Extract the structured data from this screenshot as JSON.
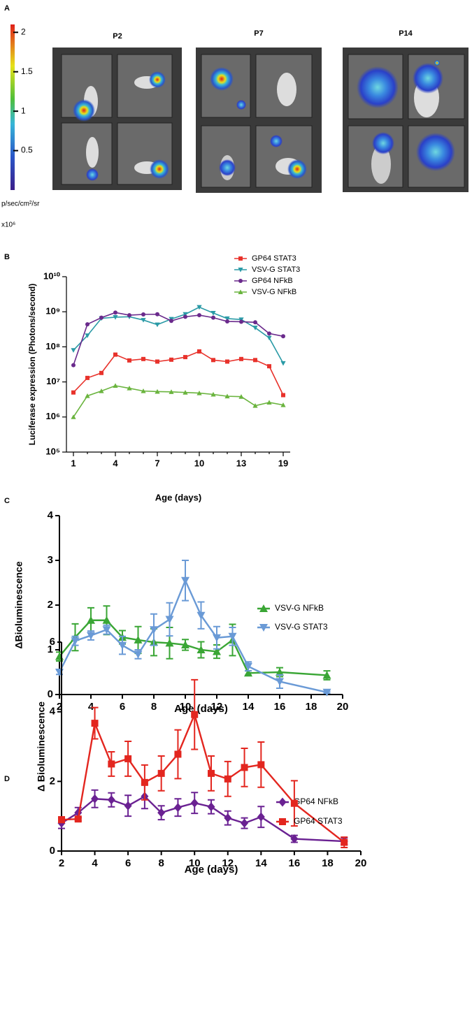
{
  "figure": {
    "panel_labels": [
      "A",
      "B",
      "C",
      "D"
    ],
    "images": {
      "titles": [
        "P2",
        "P7",
        "P14"
      ],
      "colorbar": {
        "label": "p/sec/cm²/sr",
        "multiplier": "x10⁶",
        "lim": [
          0,
          2.1
        ],
        "ticks": [
          0.5,
          1,
          1.5,
          2
        ]
      }
    }
  },
  "chart_data": [
    {
      "type": "line",
      "ylabel": "Luciferase expression (Photons/second)",
      "xlabel": "Age (days)",
      "categories": [
        "1",
        null,
        null,
        "4",
        null,
        null,
        "7",
        null,
        null,
        "10",
        null,
        null,
        "13",
        null,
        null,
        "19"
      ],
      "ylim": [
        100000,
        10000000000
      ],
      "log_y": true,
      "yticks": [
        {
          "value": 100000,
          "label": "10⁵"
        },
        {
          "value": 1000000,
          "label": "10⁶"
        },
        {
          "value": 10000000,
          "label": "10⁷"
        },
        {
          "value": 100000000,
          "label": "10⁸"
        },
        {
          "value": 1000000000,
          "label": "10⁹"
        },
        {
          "value": 10000000000,
          "label": "10¹⁰"
        }
      ],
      "legend": "upper right",
      "series": [
        {
          "name": "GP64 STAT3",
          "color": "#e8322b",
          "marker": "square",
          "values": [
            5000000,
            13000000,
            18000000,
            60000000,
            41000000,
            45000000,
            38000000,
            43000000,
            51000000,
            74000000,
            42000000,
            38000000,
            45000000,
            42000000,
            28000000,
            4200000
          ]
        },
        {
          "name": "VSV-G STAT3",
          "color": "#2a9aa6",
          "marker": "triangle-down",
          "values": [
            80000000,
            210000000,
            650000000,
            700000000,
            720000000,
            580000000,
            430000000,
            620000000,
            850000000,
            1350000000,
            920000000,
            640000000,
            600000000,
            350000000,
            180000000,
            34000000
          ]
        },
        {
          "name": "GP64 NFkB",
          "color": "#6a2a8c",
          "marker": "circle",
          "values": [
            30000000,
            440000000,
            680000000,
            950000000,
            800000000,
            840000000,
            850000000,
            550000000,
            720000000,
            800000000,
            680000000,
            530000000,
            520000000,
            500000000,
            240000000,
            200000000
          ]
        },
        {
          "name": "VSV-G NFkB",
          "color": "#6ab43e",
          "marker": "triangle-up",
          "values": [
            1000000,
            4000000,
            5500000,
            7800000,
            6600000,
            5500000,
            5300000,
            5200000,
            5000000,
            4800000,
            4400000,
            3900000,
            3800000,
            2100000,
            2600000,
            2200000
          ]
        }
      ]
    },
    {
      "type": "line",
      "ylabel": "ΔBioluminescence",
      "xlabel": "Age (days)",
      "xlim": [
        2,
        20
      ],
      "xticks": [
        2,
        4,
        6,
        8,
        10,
        12,
        14,
        16,
        18,
        20
      ],
      "ylim": [
        0,
        4
      ],
      "yticks": [
        0,
        1,
        2,
        3,
        4
      ],
      "legend": "upper right",
      "series": [
        {
          "name": "VSV-G NFkB",
          "color": "#3aa635",
          "marker": "triangle-up",
          "x": [
            2,
            3,
            4,
            5,
            6,
            7,
            8,
            9,
            10,
            11,
            12,
            13,
            14,
            16,
            19
          ],
          "values": [
            0.85,
            1.28,
            1.66,
            1.66,
            1.28,
            1.22,
            1.17,
            1.15,
            1.11,
            1.0,
            0.96,
            1.22,
            0.48,
            0.5,
            0.43
          ],
          "errors": [
            0.1,
            0.3,
            0.28,
            0.32,
            0.15,
            0.3,
            0.3,
            0.35,
            0.12,
            0.18,
            0.15,
            0.35,
            0.05,
            0.1,
            0.1
          ]
        },
        {
          "name": "VSV-G STAT3",
          "color": "#6a9ad6",
          "marker": "triangle-down",
          "x": [
            2,
            3,
            4,
            5,
            6,
            7,
            8,
            9,
            10,
            11,
            12,
            13,
            14,
            16,
            19
          ],
          "values": [
            0.5,
            1.2,
            1.32,
            1.45,
            1.1,
            0.9,
            1.45,
            1.68,
            2.55,
            1.77,
            1.27,
            1.3,
            0.63,
            0.29,
            0.05
          ],
          "errors": [
            0.05,
            0.1,
            0.1,
            0.1,
            0.2,
            0.1,
            0.35,
            0.37,
            0.45,
            0.3,
            0.25,
            0.2,
            0.1,
            0.15,
            0.02
          ]
        }
      ]
    },
    {
      "type": "line",
      "ylabel": "Δ Bioluminescence",
      "xlabel": "Age (days)",
      "xlim": [
        2,
        20
      ],
      "xticks": [
        2,
        4,
        6,
        8,
        10,
        12,
        14,
        16,
        18,
        20
      ],
      "ylim": [
        0,
        6
      ],
      "yticks": [
        0,
        2,
        4,
        6
      ],
      "legend": "upper right",
      "series": [
        {
          "name": "GP64 NFkB",
          "color": "#6a2192",
          "marker": "diamond",
          "x": [
            2,
            3,
            4,
            5,
            6,
            7,
            8,
            9,
            10,
            11,
            12,
            13,
            14,
            16,
            19
          ],
          "values": [
            0.8,
            1.1,
            1.5,
            1.47,
            1.3,
            1.57,
            1.1,
            1.25,
            1.38,
            1.27,
            0.95,
            0.8,
            0.98,
            0.35,
            0.28
          ],
          "errors": [
            0.15,
            0.15,
            0.25,
            0.2,
            0.3,
            0.35,
            0.2,
            0.25,
            0.3,
            0.2,
            0.2,
            0.15,
            0.3,
            0.1,
            0.1
          ]
        },
        {
          "name": "GP64 STAT3",
          "color": "#e3261f",
          "marker": "square",
          "x": [
            2,
            3,
            4,
            5,
            6,
            7,
            8,
            9,
            10,
            11,
            12,
            13,
            14,
            16,
            19
          ],
          "values": [
            0.9,
            0.92,
            3.67,
            2.5,
            2.65,
            1.97,
            2.23,
            2.78,
            3.92,
            2.23,
            2.07,
            2.4,
            2.48,
            1.37,
            0.25
          ],
          "errors": [
            0.08,
            0.05,
            0.45,
            0.35,
            0.5,
            0.5,
            0.5,
            0.7,
            1.0,
            0.5,
            0.5,
            0.55,
            0.65,
            0.65,
            0.15
          ]
        }
      ]
    }
  ]
}
